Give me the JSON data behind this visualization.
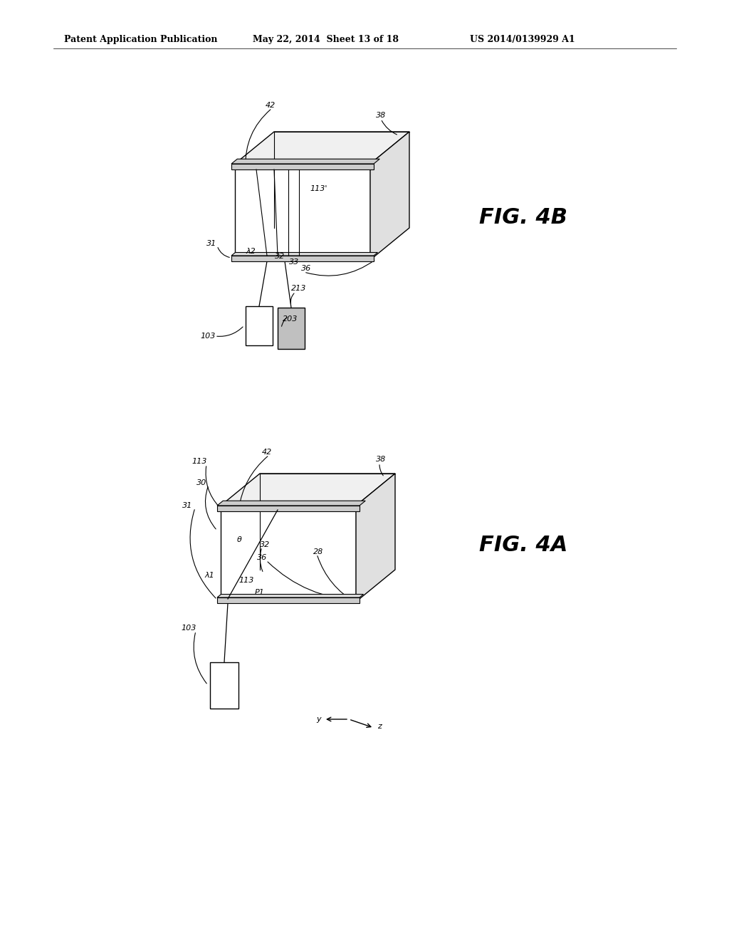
{
  "bg_color": "#ffffff",
  "line_color": "#000000",
  "header_text": "Patent Application Publication",
  "header_date": "May 22, 2014  Sheet 13 of 18",
  "header_patent": "US 2014/0139929 A1",
  "fig4b_label": "FIG. 4B",
  "fig4a_label": "FIG. 4A"
}
